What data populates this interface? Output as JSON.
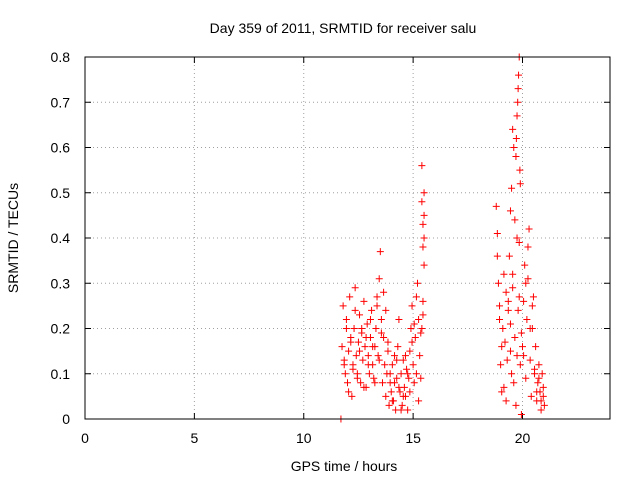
{
  "chart_data": {
    "type": "scatter",
    "title": "Day 359 of 2011, SRMTID for receiver salu",
    "xlabel": "GPS time / hours",
    "ylabel": "SRMTID / TECUs",
    "xlim": [
      0,
      24
    ],
    "ylim": [
      0,
      0.8
    ],
    "grid": true,
    "marker": "+",
    "color": "#ff0000",
    "x_ticks": [
      0,
      5,
      10,
      15,
      20
    ],
    "x_tick_labels": [
      "0",
      "5",
      "10",
      "15",
      "20"
    ],
    "y_ticks": [
      0,
      0.1,
      0.2,
      0.3,
      0.4,
      0.5,
      0.6,
      0.7,
      0.8
    ],
    "y_tick_labels": [
      "0",
      "0.1",
      "0.2",
      "0.3",
      "0.4",
      "0.5",
      "0.6",
      "0.7",
      "0.8"
    ],
    "series": [
      {
        "name": "SRMTID",
        "x": [
          11.75,
          11.8,
          11.85,
          11.9,
          11.95,
          12.0,
          12.05,
          12.1,
          12.15,
          12.2,
          12.25,
          12.3,
          12.35,
          12.4,
          12.45,
          12.5,
          12.55,
          12.6,
          12.65,
          12.7,
          12.75,
          12.8,
          12.85,
          12.9,
          12.95,
          13.0,
          13.05,
          13.1,
          13.15,
          13.2,
          13.25,
          13.3,
          13.35,
          13.4,
          13.45,
          13.5,
          13.55,
          13.6,
          13.65,
          13.7,
          13.75,
          13.8,
          13.85,
          13.9,
          13.95,
          14.0,
          14.05,
          14.1,
          14.15,
          14.2,
          14.25,
          14.3,
          14.35,
          14.4,
          14.45,
          14.5,
          14.55,
          14.6,
          14.65,
          14.7,
          14.75,
          14.8,
          14.85,
          14.9,
          14.95,
          15.0,
          15.05,
          15.1,
          15.15,
          15.2,
          15.25,
          15.3,
          15.35,
          15.4,
          15.45,
          15.5,
          11.85,
          11.95,
          12.05,
          12.15,
          12.25,
          12.35,
          12.45,
          12.55,
          12.65,
          12.75,
          12.85,
          12.95,
          13.05,
          13.15,
          13.25,
          13.35,
          13.45,
          13.55,
          13.65,
          13.75,
          13.85,
          13.95,
          14.05,
          14.15,
          14.25,
          14.35,
          14.45,
          14.55,
          14.65,
          14.75,
          14.85,
          14.95,
          15.05,
          15.15,
          15.25,
          15.35,
          15.45,
          15.5,
          15.5,
          15.5,
          15.45,
          15.45,
          15.4,
          15.4,
          11.7,
          18.8,
          18.85,
          18.9,
          18.95,
          19.0,
          19.05,
          19.1,
          19.15,
          19.2,
          19.25,
          19.3,
          19.35,
          19.4,
          19.45,
          19.5,
          19.55,
          19.6,
          19.65,
          19.7,
          19.75,
          19.8,
          19.85,
          19.9,
          19.95,
          20.0,
          20.05,
          20.1,
          20.15,
          20.2,
          20.25,
          20.3,
          20.35,
          20.4,
          20.45,
          20.5,
          20.55,
          20.6,
          20.65,
          20.7,
          20.75,
          20.8,
          20.85,
          20.9,
          20.95,
          21.0,
          18.85,
          18.95,
          19.05,
          19.15,
          19.25,
          19.35,
          19.45,
          19.55,
          19.65,
          19.75,
          19.85,
          19.95,
          20.05,
          20.15,
          20.25,
          20.35,
          20.45,
          20.55,
          20.65,
          20.75,
          20.85,
          20.95,
          19.7,
          19.72,
          19.75,
          19.78,
          19.8,
          19.82,
          19.85,
          19.88,
          19.9,
          19.6,
          19.55,
          19.5,
          19.45
        ],
        "y": [
          0.16,
          0.25,
          0.13,
          0.1,
          0.22,
          0.08,
          0.15,
          0.27,
          0.18,
          0.05,
          0.12,
          0.2,
          0.29,
          0.14,
          0.1,
          0.17,
          0.23,
          0.08,
          0.19,
          0.13,
          0.26,
          0.16,
          0.07,
          0.21,
          0.14,
          0.1,
          0.18,
          0.24,
          0.12,
          0.09,
          0.16,
          0.2,
          0.27,
          0.14,
          0.31,
          0.37,
          0.22,
          0.08,
          0.18,
          0.12,
          0.05,
          0.1,
          0.15,
          0.03,
          0.08,
          0.06,
          0.12,
          0.04,
          0.14,
          0.02,
          0.09,
          0.16,
          0.22,
          0.06,
          0.1,
          0.03,
          0.13,
          0.07,
          0.05,
          0.11,
          0.02,
          0.09,
          0.15,
          0.2,
          0.25,
          0.12,
          0.08,
          0.18,
          0.27,
          0.3,
          0.22,
          0.14,
          0.09,
          0.2,
          0.26,
          0.34,
          0.12,
          0.2,
          0.06,
          0.17,
          0.11,
          0.24,
          0.09,
          0.15,
          0.2,
          0.07,
          0.18,
          0.12,
          0.22,
          0.16,
          0.08,
          0.25,
          0.13,
          0.19,
          0.28,
          0.24,
          0.17,
          0.1,
          0.04,
          0.08,
          0.13,
          0.07,
          0.02,
          0.05,
          0.14,
          0.1,
          0.06,
          0.17,
          0.21,
          0.1,
          0.04,
          0.19,
          0.23,
          0.4,
          0.45,
          0.5,
          0.38,
          0.43,
          0.48,
          0.56,
          0.0,
          0.47,
          0.41,
          0.3,
          0.22,
          0.12,
          0.06,
          0.2,
          0.32,
          0.17,
          0.04,
          0.13,
          0.26,
          0.36,
          0.21,
          0.1,
          0.29,
          0.08,
          0.18,
          0.03,
          0.14,
          0.24,
          0.39,
          0.12,
          0.01,
          0.16,
          0.26,
          0.34,
          0.09,
          0.22,
          0.31,
          0.42,
          0.13,
          0.05,
          0.2,
          0.27,
          0.1,
          0.16,
          0.04,
          0.08,
          0.12,
          0.06,
          0.02,
          0.1,
          0.07,
          0.03,
          0.36,
          0.25,
          0.16,
          0.07,
          0.28,
          0.24,
          0.15,
          0.32,
          0.44,
          0.4,
          0.27,
          0.19,
          0.14,
          0.3,
          0.38,
          0.2,
          0.25,
          0.11,
          0.06,
          0.09,
          0.04,
          0.05,
          0.58,
          0.62,
          0.67,
          0.7,
          0.73,
          0.76,
          0.8,
          0.55,
          0.52,
          0.6,
          0.64,
          0.51,
          0.46
        ]
      }
    ]
  }
}
